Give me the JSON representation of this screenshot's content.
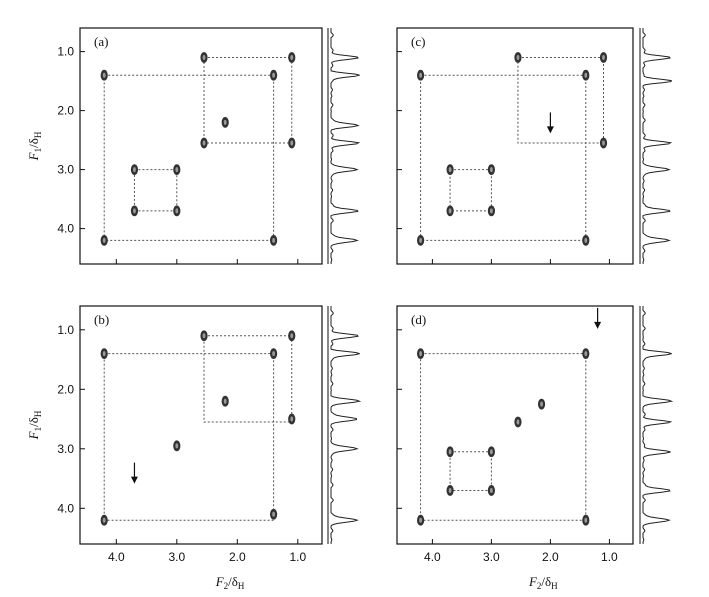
{
  "figure": {
    "y_axis_title": {
      "main": "F",
      "main_sub": "1",
      "sep": "/δ",
      "sep_sub": "H"
    },
    "x_axis_title": {
      "main": "F",
      "main_sub": "2",
      "sep": "/δ",
      "sep_sub": "H"
    },
    "y_ticks": [
      "1.0",
      "2.0",
      "3.0",
      "4.0"
    ],
    "x_ticks": [
      "4.0",
      "3.0",
      "2.0",
      "1.0"
    ],
    "colors": {
      "frame": "#111111",
      "dotted_line": "#555555",
      "peak": "#333333",
      "projection": "#222222"
    }
  },
  "chart_data": [
    {
      "type": "scatter",
      "panel": "(a)",
      "xlabel": "F2/δH",
      "ylabel": "F1/δH",
      "xlim": [
        4.6,
        0.6
      ],
      "ylim": [
        0.6,
        4.6
      ],
      "peaks": [
        {
          "x": 4.2,
          "y": 1.4
        },
        {
          "x": 1.4,
          "y": 1.4
        },
        {
          "x": 2.55,
          "y": 1.1
        },
        {
          "x": 1.1,
          "y": 1.1
        },
        {
          "x": 2.2,
          "y": 2.2
        },
        {
          "x": 2.55,
          "y": 2.55
        },
        {
          "x": 1.1,
          "y": 2.55
        },
        {
          "x": 3.7,
          "y": 3.0
        },
        {
          "x": 3.0,
          "y": 3.0
        },
        {
          "x": 3.7,
          "y": 3.7
        },
        {
          "x": 3.0,
          "y": 3.7
        },
        {
          "x": 4.2,
          "y": 4.2
        },
        {
          "x": 1.4,
          "y": 4.2
        }
      ],
      "cross_boxes": [
        {
          "x1": 4.2,
          "x2": 1.4,
          "y1": 1.4,
          "y2": 4.2
        },
        {
          "x1": 2.55,
          "x2": 1.1,
          "y1": 1.1,
          "y2": 2.55
        },
        {
          "x1": 3.7,
          "x2": 3.0,
          "y1": 3.0,
          "y2": 3.7
        }
      ],
      "projection_peaks": [
        1.1,
        1.4,
        2.25,
        2.55,
        3.0,
        3.7,
        4.2
      ]
    },
    {
      "type": "scatter",
      "panel": "(c)",
      "xlabel": "F2/δH",
      "ylabel": "F1/δH",
      "xlim": [
        4.6,
        0.6
      ],
      "ylim": [
        0.6,
        4.6
      ],
      "peaks": [
        {
          "x": 4.2,
          "y": 1.4
        },
        {
          "x": 1.4,
          "y": 1.4
        },
        {
          "x": 2.55,
          "y": 1.1
        },
        {
          "x": 1.1,
          "y": 1.1
        },
        {
          "x": 1.1,
          "y": 2.55
        },
        {
          "x": 3.7,
          "y": 3.0
        },
        {
          "x": 3.0,
          "y": 3.0
        },
        {
          "x": 3.7,
          "y": 3.7
        },
        {
          "x": 3.0,
          "y": 3.7
        },
        {
          "x": 4.2,
          "y": 4.2
        },
        {
          "x": 1.4,
          "y": 4.2
        }
      ],
      "cross_boxes": [
        {
          "x1": 4.2,
          "x2": 1.4,
          "y1": 1.4,
          "y2": 4.2
        },
        {
          "x1": 2.55,
          "x2": 1.1,
          "y1": 1.1,
          "y2": 2.55
        },
        {
          "x1": 3.7,
          "x2": 3.0,
          "y1": 3.0,
          "y2": 3.7
        }
      ],
      "arrow": {
        "x": 2.0,
        "y": 2.2
      },
      "projection_peaks": [
        1.1,
        1.5,
        2.55,
        3.0,
        3.7,
        4.2
      ]
    },
    {
      "type": "scatter",
      "panel": "(b)",
      "xlabel": "F2/δH",
      "ylabel": "F1/δH",
      "xlim": [
        4.6,
        0.6
      ],
      "ylim": [
        0.6,
        4.6
      ],
      "peaks": [
        {
          "x": 4.2,
          "y": 1.4
        },
        {
          "x": 1.4,
          "y": 1.4
        },
        {
          "x": 2.55,
          "y": 1.1
        },
        {
          "x": 1.1,
          "y": 1.1
        },
        {
          "x": 2.2,
          "y": 2.2
        },
        {
          "x": 1.1,
          "y": 2.5
        },
        {
          "x": 3.0,
          "y": 2.95
        },
        {
          "x": 4.2,
          "y": 4.2
        },
        {
          "x": 1.4,
          "y": 4.1
        }
      ],
      "cross_boxes": [
        {
          "x1": 4.2,
          "x2": 1.4,
          "y1": 1.4,
          "y2": 4.2
        },
        {
          "x1": 2.55,
          "x2": 1.1,
          "y1": 1.1,
          "y2": 2.55
        }
      ],
      "arrow": {
        "x": 3.7,
        "y": 3.4
      },
      "projection_peaks": [
        1.1,
        1.4,
        2.2,
        2.5,
        3.0,
        4.2
      ]
    },
    {
      "type": "scatter",
      "panel": "(d)",
      "xlabel": "F2/δH",
      "ylabel": "F1/δH",
      "xlim": [
        4.6,
        0.6
      ],
      "ylim": [
        0.6,
        4.6
      ],
      "peaks": [
        {
          "x": 4.2,
          "y": 1.4
        },
        {
          "x": 1.4,
          "y": 1.4
        },
        {
          "x": 2.15,
          "y": 2.25
        },
        {
          "x": 2.55,
          "y": 2.55
        },
        {
          "x": 3.7,
          "y": 3.05
        },
        {
          "x": 3.0,
          "y": 3.05
        },
        {
          "x": 3.7,
          "y": 3.7
        },
        {
          "x": 3.0,
          "y": 3.7
        },
        {
          "x": 4.2,
          "y": 4.2
        },
        {
          "x": 1.4,
          "y": 4.2
        }
      ],
      "cross_boxes": [
        {
          "x1": 4.2,
          "x2": 1.4,
          "y1": 1.4,
          "y2": 4.2
        },
        {
          "x1": 3.7,
          "x2": 3.0,
          "y1": 3.05,
          "y2": 3.7
        }
      ],
      "arrow": {
        "x": 1.2,
        "y": 0.8
      },
      "projection_peaks": [
        1.4,
        2.2,
        2.55,
        3.05,
        3.7,
        4.2
      ]
    }
  ]
}
